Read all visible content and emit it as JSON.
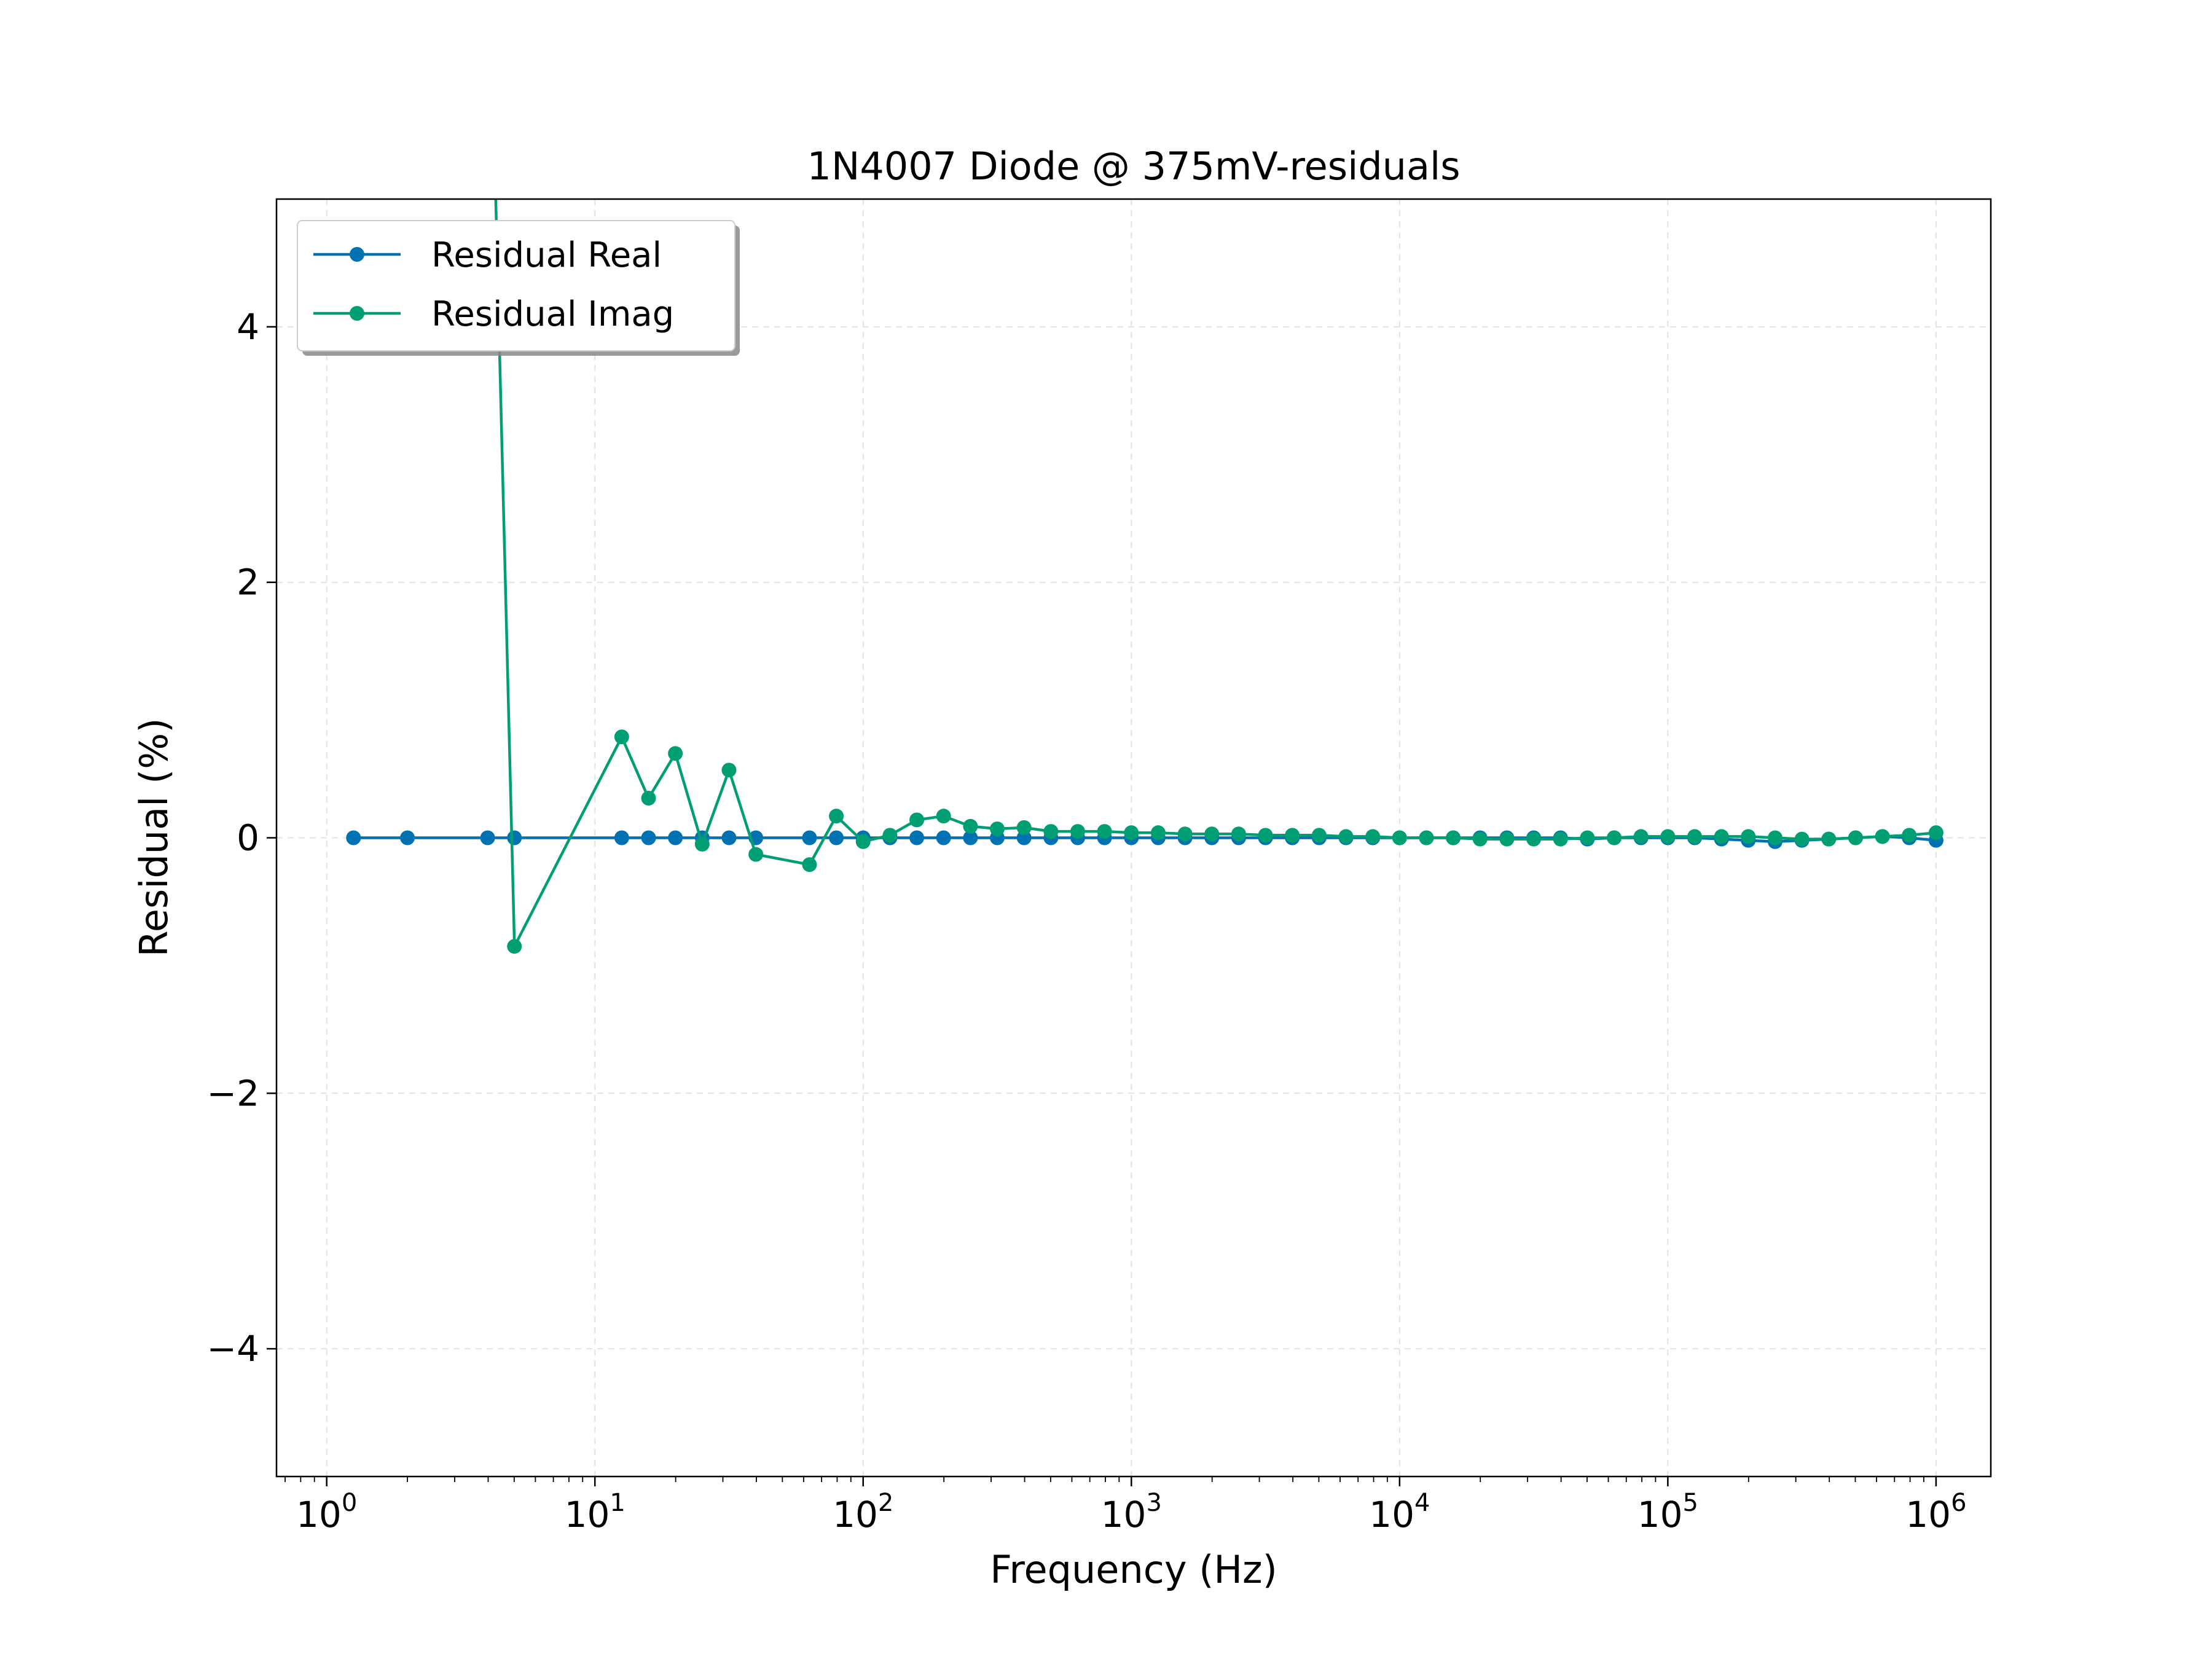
{
  "chart_data": {
    "type": "line",
    "title": "1N4007 Diode @ 375mV-residuals",
    "xlabel": "Frequency (Hz)",
    "ylabel": "Residual (%)",
    "xscale": "log",
    "xlim": [
      0.65,
      1600000
    ],
    "ylim": [
      -5,
      5
    ],
    "x_ticks": [
      {
        "base": "10",
        "exp": "0",
        "value": 1
      },
      {
        "base": "10",
        "exp": "1",
        "value": 10
      },
      {
        "base": "10",
        "exp": "2",
        "value": 100
      },
      {
        "base": "10",
        "exp": "3",
        "value": 1000
      },
      {
        "base": "10",
        "exp": "4",
        "value": 10000
      },
      {
        "base": "10",
        "exp": "5",
        "value": 100000
      },
      {
        "base": "10",
        "exp": "6",
        "value": 1000000
      }
    ],
    "y_ticks": [
      {
        "label": "4",
        "value": 4
      },
      {
        "label": "2",
        "value": 2
      },
      {
        "label": "0",
        "value": 0
      },
      {
        "label": "−2",
        "value": -2
      },
      {
        "label": "−4",
        "value": -4
      }
    ],
    "grid": true,
    "legend_position": "top-left",
    "series": [
      {
        "name": "Residual Real",
        "color": "#0072B2",
        "x": [
          1.259,
          2,
          3.981,
          5.012,
          12.59,
          15.85,
          19.95,
          25.12,
          31.62,
          39.81,
          63.1,
          79.43,
          100,
          125.9,
          158.5,
          199.5,
          251.2,
          316.2,
          398.1,
          501.2,
          631,
          794.3,
          1000,
          1259,
          1585,
          1995,
          2512,
          3162,
          3981,
          5012,
          6310,
          7943,
          10000,
          12590,
          15850,
          19950,
          25120,
          31620,
          39810,
          50120,
          63100,
          79430,
          100000,
          125900,
          158500,
          199500,
          251200,
          316200,
          398100,
          501200,
          631000,
          794300,
          1000000
        ],
        "y": [
          0.0,
          0.0,
          0.0,
          0.0,
          0.0,
          0.0,
          0.0,
          0.0,
          0.0,
          0.0,
          0.0,
          0.0,
          0.0,
          0.0,
          0.0,
          0.0,
          0.0,
          0.0,
          0.0,
          0.0,
          0.0,
          0.0,
          0.0,
          0.0,
          0.0,
          0.0,
          0.0,
          0.0,
          0.0,
          0.0,
          0.0,
          0.0,
          0.0,
          0.0,
          0.0,
          0.0,
          0.0,
          0.0,
          0.0,
          -0.01,
          0.0,
          0.0,
          0.0,
          0.0,
          -0.01,
          -0.02,
          -0.03,
          -0.02,
          -0.01,
          0.0,
          0.01,
          0.0,
          -0.02
        ]
      },
      {
        "name": "Residual Imag",
        "color": "#009E73",
        "x": [
          4.2,
          5.012,
          12.59,
          15.85,
          19.95,
          25.12,
          31.62,
          39.81,
          63.1,
          79.43,
          100,
          125.9,
          158.5,
          199.5,
          251.2,
          316.2,
          398.1,
          501.2,
          631,
          794.3,
          1000,
          1259,
          1585,
          1995,
          2512,
          3162,
          3981,
          5012,
          6310,
          7943,
          10000,
          12590,
          15850,
          19950,
          25120,
          31620,
          39810,
          50120,
          63100,
          79430,
          100000,
          125900,
          158500,
          199500,
          251200,
          316200,
          398100,
          501200,
          631000,
          794300,
          1000000
        ],
        "y": [
          5.6,
          -0.85,
          0.79,
          0.31,
          0.66,
          -0.05,
          0.53,
          -0.13,
          -0.21,
          0.17,
          -0.03,
          0.02,
          0.14,
          0.17,
          0.09,
          0.07,
          0.08,
          0.05,
          0.05,
          0.05,
          0.04,
          0.04,
          0.03,
          0.03,
          0.03,
          0.02,
          0.02,
          0.02,
          0.01,
          0.01,
          0.0,
          0.0,
          0.0,
          -0.01,
          -0.01,
          -0.01,
          -0.01,
          0.0,
          0.0,
          0.01,
          0.01,
          0.01,
          0.01,
          0.01,
          0.0,
          -0.01,
          -0.01,
          0.0,
          0.01,
          0.02,
          0.04
        ]
      }
    ]
  }
}
